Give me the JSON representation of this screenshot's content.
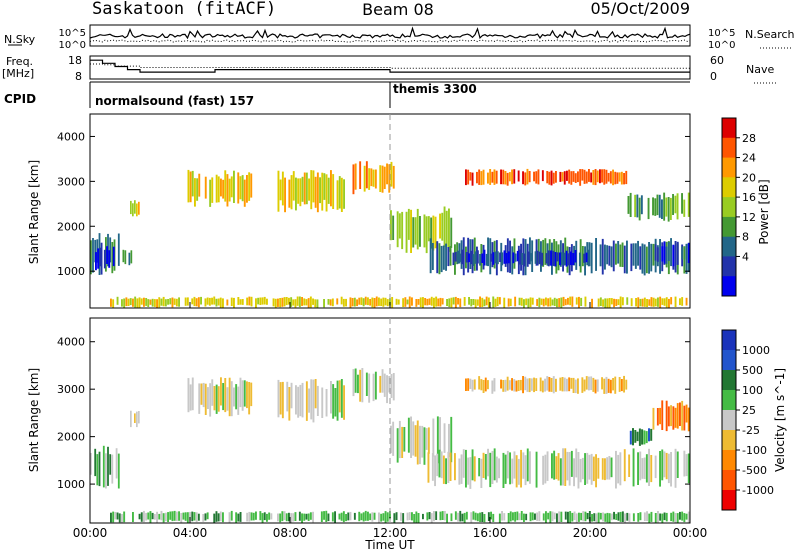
{
  "header": {
    "title": "Saskatoon (fitACF)",
    "beam": "Beam 08",
    "date": "05/Oct/2009"
  },
  "chart_data": [
    {
      "type": "line",
      "panel": "noise",
      "left_label": "N.Sky",
      "right_label": "N.Search",
      "left_ticks": [
        "10^5",
        "10^0"
      ],
      "right_ticks": [
        "10^5",
        "10^0"
      ],
      "series": [
        {
          "name": "N.Sky",
          "style": "solid"
        },
        {
          "name": "N.Search",
          "style": "dotted"
        }
      ]
    },
    {
      "type": "line",
      "panel": "frequency",
      "left_label_line1": "Freq.",
      "left_label_line2": "[MHz]",
      "right_label": "Nave",
      "left_ticks": [
        "18",
        "8"
      ],
      "right_ticks": [
        "60",
        "0"
      ],
      "ylim_freq": [
        8,
        18
      ],
      "ylim_nave": [
        0,
        60
      ],
      "series": [
        {
          "name": "Freq.",
          "style": "solid",
          "x": [
            0,
            0.5,
            1.0,
            1.5,
            2.0,
            4.5,
            5.0,
            12.0,
            24.0
          ],
          "y": [
            16.5,
            15,
            13.5,
            12,
            10.8,
            10.8,
            12,
            10.8,
            10.8
          ]
        },
        {
          "name": "Nave",
          "style": "dotted",
          "x": [
            0,
            0.5,
            1.0,
            2.0,
            12.0,
            24.0
          ],
          "y": [
            40,
            38,
            34,
            30,
            28,
            27
          ]
        }
      ]
    },
    {
      "type": "table",
      "panel": "cpid",
      "label": "CPID",
      "modes": [
        {
          "name": "normalsound (fast) 157",
          "start_hour": 0
        },
        {
          "name": "themis 3300",
          "start_hour": 12
        }
      ]
    },
    {
      "type": "heatmap",
      "panel": "power",
      "ylabel": "Slant Range [km]",
      "xlabel": "Time UT",
      "xlim": [
        0,
        24
      ],
      "ylim": [
        180,
        4500
      ],
      "yticks": [
        1000,
        2000,
        3000,
        4000
      ],
      "colorbar_label": "Power [dB]",
      "colorbar_ticks": [
        "28",
        "24",
        "20",
        "16",
        "12",
        "8",
        "4"
      ],
      "colorbar_colors": [
        "#dd0000",
        "#ff5500",
        "#ff9900",
        "#ddcc00",
        "#99cc22",
        "#449933",
        "#226688",
        "#2233aa",
        "#0000ee"
      ],
      "regions": [
        {
          "t": [
            0.0,
            1.2
          ],
          "r": [
            900,
            1900
          ],
          "level": 6
        },
        {
          "t": [
            0.2,
            1.0
          ],
          "r": [
            1000,
            1600
          ],
          "level": 8
        },
        {
          "t": [
            1.3,
            1.7
          ],
          "r": [
            1100,
            1500
          ],
          "level": 5
        },
        {
          "t": [
            1.6,
            2.0
          ],
          "r": [
            2200,
            2600
          ],
          "level": 3
        },
        {
          "t": [
            3.9,
            6.5
          ],
          "r": [
            2400,
            3300
          ],
          "level": 3
        },
        {
          "t": [
            7.5,
            10.3
          ],
          "r": [
            2300,
            3300
          ],
          "level": 3
        },
        {
          "t": [
            10.5,
            12.2
          ],
          "r": [
            2700,
            3500
          ],
          "level": 2
        },
        {
          "t": [
            12.0,
            14.5
          ],
          "r": [
            1400,
            2500
          ],
          "level": 4
        },
        {
          "t": [
            13.5,
            24.0
          ],
          "r": [
            900,
            1800
          ],
          "level": 6
        },
        {
          "t": [
            14.5,
            20.0
          ],
          "r": [
            1100,
            1500
          ],
          "level": 7
        },
        {
          "t": [
            21.5,
            24.0
          ],
          "r": [
            2100,
            2800
          ],
          "level": 5
        },
        {
          "t": [
            22.5,
            24.0
          ],
          "r": [
            1100,
            1700
          ],
          "level": 7
        },
        {
          "t": [
            15.0,
            21.5
          ],
          "r": [
            2900,
            3300
          ],
          "level": 1
        },
        {
          "t": [
            0.8,
            24.0
          ],
          "r": [
            180,
            450
          ],
          "level": 3
        }
      ]
    },
    {
      "type": "heatmap",
      "panel": "velocity",
      "ylabel": "Slant Range [km]",
      "xlabel": "Time UT",
      "xlim": [
        0,
        24
      ],
      "ylim": [
        180,
        4500
      ],
      "yticks": [
        1000,
        2000,
        3000,
        4000
      ],
      "xticks": [
        "00:00",
        "04:00",
        "08:00",
        "12:00",
        "16:00",
        "20:00",
        "00:00"
      ],
      "colorbar_label": "Velocity [m s^-1]",
      "colorbar_ticks": [
        "1000",
        "500",
        "100",
        "25",
        "-25",
        "-100",
        "-500",
        "-1000"
      ],
      "colorbar_colors": [
        "#1a33bb",
        "#2255cc",
        "#227733",
        "#44bb44",
        "#c8c8c8",
        "#eebb33",
        "#ff8800",
        "#ff5500",
        "#ee0000"
      ],
      "regions": [
        {
          "t": [
            0.0,
            1.2
          ],
          "r": [
            900,
            1900
          ],
          "level": 3
        },
        {
          "t": [
            1.6,
            2.0
          ],
          "r": [
            2200,
            2600
          ],
          "level": 4
        },
        {
          "t": [
            3.9,
            6.5
          ],
          "r": [
            2400,
            3300
          ],
          "level": 4
        },
        {
          "t": [
            7.5,
            10.3
          ],
          "r": [
            2300,
            3300
          ],
          "level": 4
        },
        {
          "t": [
            10.5,
            12.2
          ],
          "r": [
            2700,
            3500
          ],
          "level": 4
        },
        {
          "t": [
            12.0,
            14.5
          ],
          "r": [
            1400,
            2500
          ],
          "level": 4
        },
        {
          "t": [
            13.5,
            24.0
          ],
          "r": [
            900,
            1800
          ],
          "level": 4
        },
        {
          "t": [
            21.5,
            22.5
          ],
          "r": [
            1800,
            2200
          ],
          "level": 2
        },
        {
          "t": [
            22.5,
            24.0
          ],
          "r": [
            2100,
            2800
          ],
          "level": 6
        },
        {
          "t": [
            15.0,
            21.5
          ],
          "r": [
            2900,
            3300
          ],
          "level": 5
        },
        {
          "t": [
            0.8,
            24.0
          ],
          "r": [
            180,
            450
          ],
          "level": 3
        }
      ]
    }
  ]
}
